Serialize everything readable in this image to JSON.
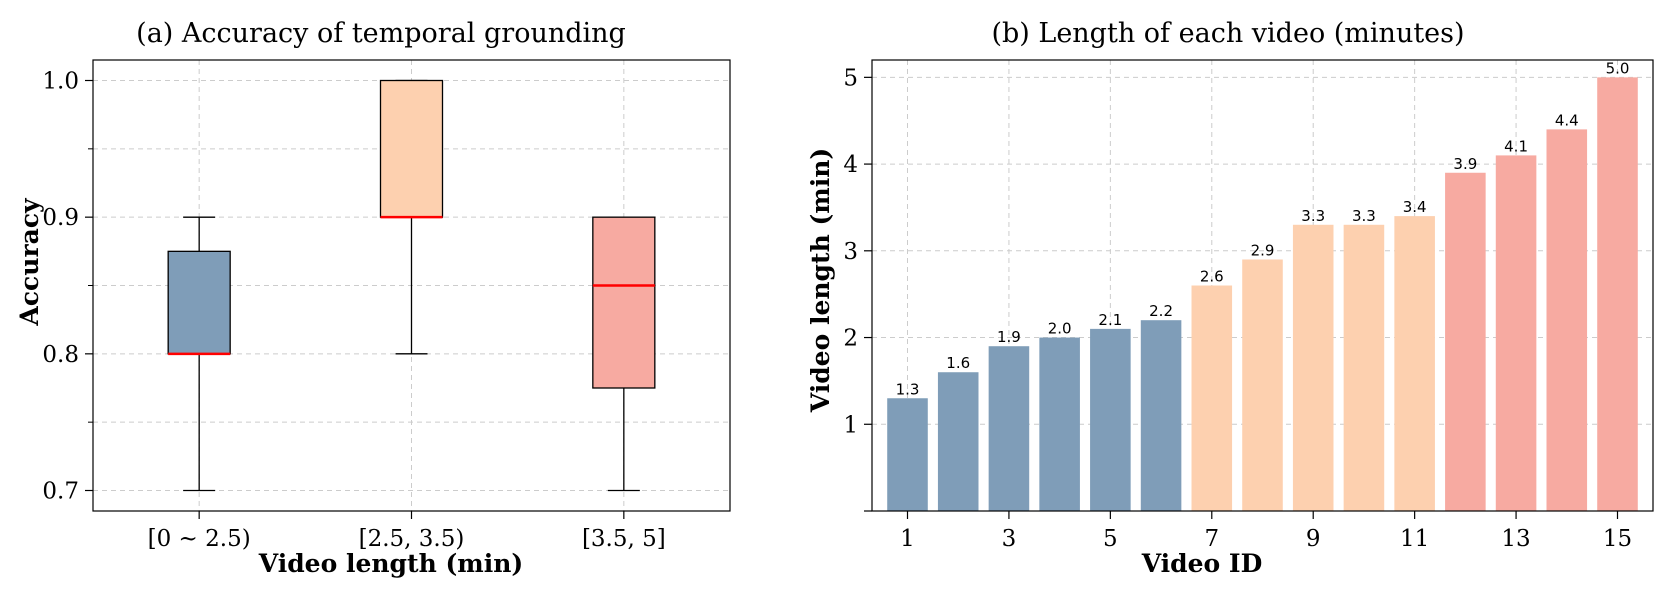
{
  "chart_data": [
    {
      "type": "box",
      "title": "(a) Accuracy of temporal grounding",
      "xlabel": "Video length (min)",
      "ylabel": "Accuracy",
      "ylim": [
        0.685,
        1.015
      ],
      "yticks": [
        0.7,
        0.8,
        0.9,
        1.0
      ],
      "ytick_labels": [
        "0.7",
        "0.8",
        "0.9",
        "1.0"
      ],
      "grid": true,
      "categories": [
        "[0 ~ 2.5)",
        "[2.5, 3.5)",
        "[3.5, 5]"
      ],
      "boxes": [
        {
          "name": "[0 ~ 2.5)",
          "whisker_low": 0.7,
          "q1": 0.8,
          "median": 0.8,
          "q3": 0.875,
          "whisker_high": 0.9,
          "color": "#7f9db8"
        },
        {
          "name": "[2.5, 3.5)",
          "whisker_low": 0.8,
          "q1": 0.9,
          "median": 0.9,
          "q3": 1.0,
          "whisker_high": 1.0,
          "color": "#fdd0af"
        },
        {
          "name": "[3.5, 5]",
          "whisker_low": 0.7,
          "q1": 0.775,
          "median": 0.85,
          "q3": 0.9,
          "whisker_high": 0.9,
          "color": "#f7aaa1"
        }
      ],
      "median_color": "#ff0000"
    },
    {
      "type": "bar",
      "title": "(b) Length of each video (minutes)",
      "xlabel": "Video ID",
      "ylabel": "Video length (min)",
      "ylim": [
        0,
        5.2
      ],
      "yticks": [
        1,
        2,
        3,
        4,
        5
      ],
      "ytick_labels": [
        "1",
        "2",
        "3",
        "4",
        "5"
      ],
      "xtick_labels": [
        "1",
        "3",
        "5",
        "7",
        "9",
        "11",
        "13",
        "15"
      ],
      "grid": true,
      "categories": [
        "1",
        "2",
        "3",
        "4",
        "5",
        "6",
        "7",
        "8",
        "9",
        "10",
        "11",
        "12",
        "13",
        "14",
        "15"
      ],
      "values": [
        1.3,
        1.6,
        1.9,
        2.0,
        2.1,
        2.2,
        2.6,
        2.9,
        3.3,
        3.3,
        3.4,
        3.9,
        4.1,
        4.4,
        5.0
      ],
      "value_labels": [
        "1.3",
        "1.6",
        "1.9",
        "2.0",
        "2.1",
        "2.2",
        "2.6",
        "2.9",
        "3.3",
        "3.3",
        "3.4",
        "3.9",
        "4.1",
        "4.4",
        "5.0"
      ],
      "group": [
        0,
        0,
        0,
        0,
        0,
        0,
        1,
        1,
        1,
        1,
        1,
        2,
        2,
        2,
        2
      ],
      "group_colors": [
        "#7f9db8",
        "#fdd0af",
        "#f7aaa1"
      ]
    }
  ]
}
